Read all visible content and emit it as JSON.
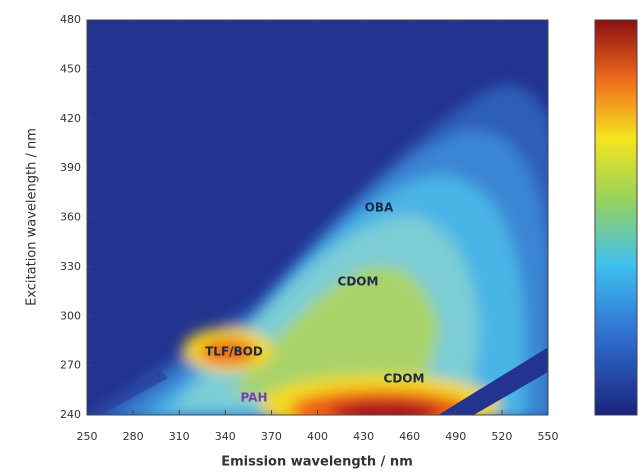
{
  "chart_data": {
    "type": "heatmap",
    "xlabel": "Emission wavelength / nm",
    "ylabel": "Excitation wavelength / nm",
    "xlim": [
      250,
      550
    ],
    "xticks": [
      250,
      280,
      310,
      340,
      370,
      400,
      430,
      460,
      490,
      520,
      550
    ],
    "ylim": [
      240,
      480
    ],
    "yticks": [
      240,
      270,
      300,
      330,
      360,
      390,
      420,
      450,
      480
    ],
    "annotations": [
      "OBA",
      "CDOM",
      "TLF/BOD",
      "CDOM",
      "PAH"
    ]
  }
}
